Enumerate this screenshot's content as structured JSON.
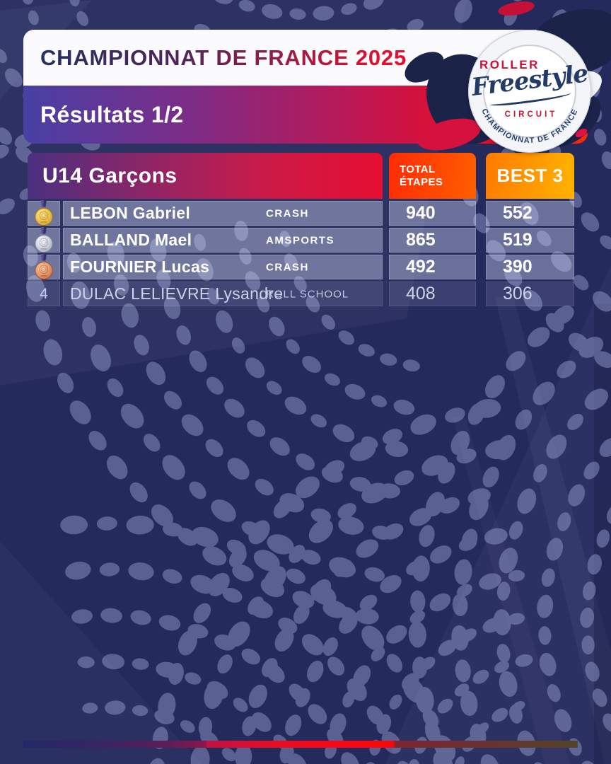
{
  "header": {
    "title": "CHAMPIONNAT DE FRANCE 2025",
    "subtitle": "Résultats 1/2"
  },
  "badge": {
    "line1": "ROLLER",
    "script": "Freestyle",
    "line2": "CIRCUIT",
    "arc": "· CHAMPIONNAT DE FRANCE ·"
  },
  "results": {
    "category": "U14 Garçons",
    "columns": {
      "total_line1": "TOTAL",
      "total_line2": "ÉTAPES",
      "best": "BEST 3"
    },
    "rows": [
      {
        "rank": "1",
        "medal": "gold",
        "name": "LEBON Gabriel",
        "club": "CRASH",
        "total": "940",
        "best": "552"
      },
      {
        "rank": "2",
        "medal": "silver",
        "name": "BALLAND Mael",
        "club": "AMSPORTS",
        "total": "865",
        "best": "519"
      },
      {
        "rank": "3",
        "medal": "bronze",
        "name": "FOURNIER Lucas",
        "club": "CRASH",
        "total": "492",
        "best": "390"
      },
      {
        "rank": "4",
        "medal": "none",
        "name": "DULAC LELIEVRE Lysandre",
        "club": "ROLL SCHOOL",
        "total": "408",
        "best": "306"
      }
    ]
  },
  "colors": {
    "background_navy": "#242A5C",
    "accent_red": "#E8102C",
    "bar_indigo": "#4740A4",
    "total_orange": "#FF5A00",
    "best_amber": "#FFB300",
    "gold": "#EAC254",
    "silver": "#CFD2DE",
    "bronze": "#E59A6C"
  }
}
